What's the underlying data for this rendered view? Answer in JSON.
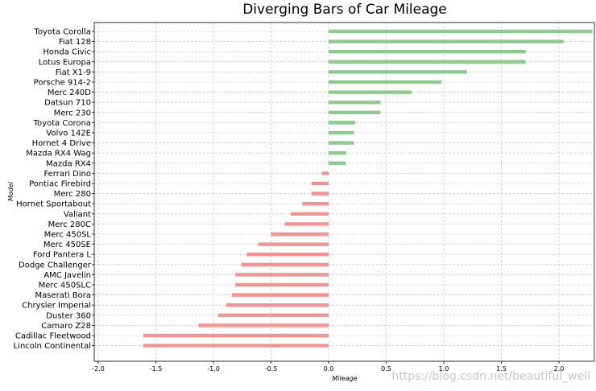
{
  "chart_data": {
    "type": "bar",
    "orientation": "horizontal",
    "title": "Diverging Bars of Car Mileage",
    "xlabel": "Mileage",
    "ylabel": "Model",
    "xlim": [
      -2.0,
      2.25
    ],
    "xticks": [
      "-2.0",
      "-1.5",
      "-1.0",
      "-0.5",
      "0.0",
      "0.5",
      "1.0",
      "1.5",
      "2.0"
    ],
    "grid": true,
    "positive_color": "#8fc98f",
    "negative_color": "#f39494",
    "categories": [
      "Toyota Corolla",
      "Fiat 128",
      "Honda Civic",
      "Lotus Europa",
      "Fiat X1-9",
      "Porsche 914-2",
      "Merc 240D",
      "Datsun 710",
      "Merc 230",
      "Toyota Corona",
      "Volvo 142E",
      "Hornet 4 Drive",
      "Mazda RX4 Wag",
      "Mazda RX4",
      "Ferrari Dino",
      "Pontiac Firebird",
      "Merc 280",
      "Hornet Sportabout",
      "Valiant",
      "Merc 280C",
      "Merc 450SL",
      "Merc 450SE",
      "Ford Pantera L",
      "Dodge Challenger",
      "AMC Javelin",
      "Merc 450SLC",
      "Maserati Bora",
      "Chrysler Imperial",
      "Duster 360",
      "Camaro Z28",
      "Cadillac Fleetwood",
      "Lincoln Continental"
    ],
    "values": [
      2.29,
      2.04,
      1.71,
      1.71,
      1.2,
      0.98,
      0.72,
      0.45,
      0.45,
      0.23,
      0.22,
      0.22,
      0.15,
      0.15,
      -0.06,
      -0.15,
      -0.15,
      -0.23,
      -0.33,
      -0.38,
      -0.5,
      -0.61,
      -0.71,
      -0.76,
      -0.81,
      -0.81,
      -0.84,
      -0.89,
      -0.96,
      -1.13,
      -1.61,
      -1.61
    ]
  },
  "watermark": "https://blog.csdn.net/beautiful_well"
}
